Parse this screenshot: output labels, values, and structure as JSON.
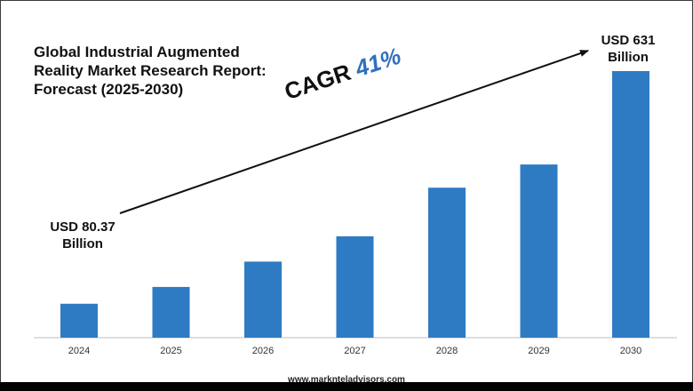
{
  "chart_data": {
    "type": "bar",
    "title_lines": [
      "Global Industrial Augmented",
      "Reality Market Research Report:",
      "Forecast (2025-2030)"
    ],
    "categories": [
      "2024",
      "2025",
      "2026",
      "2027",
      "2028",
      "2029",
      "2030"
    ],
    "values": [
      80.37,
      120,
      180,
      240,
      355,
      410,
      631
    ],
    "ylim": [
      0,
      631
    ],
    "bar_color": "#2e7bc4",
    "annotations": {
      "start": {
        "line1": "USD 80.37",
        "line2": "Billion"
      },
      "end": {
        "line1": "USD 631",
        "line2": "Billion"
      }
    },
    "cagr": {
      "label": "CAGR",
      "value": "41%"
    },
    "grid": false,
    "legend": "none"
  },
  "footer": {
    "website": "www.marknteladvisors.com"
  }
}
